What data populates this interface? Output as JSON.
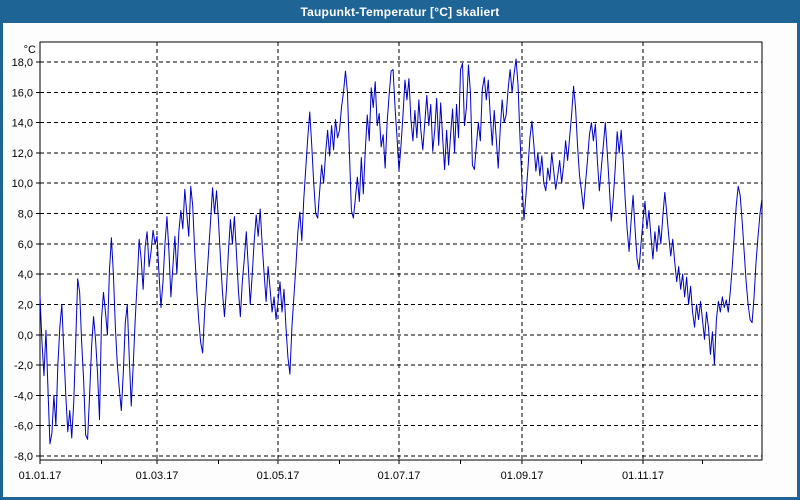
{
  "window": {
    "title": "Taupunkt-Temperatur [°C] skaliert"
  },
  "colors": {
    "titlebar_bg": "#1e6596",
    "titlebar_text": "#ffffff",
    "window_border": "#1e6596",
    "content_bg": "#fcfdfc",
    "plot_bg": "#ffffff",
    "axis": "#000000",
    "grid": "#000000",
    "line": "#0000c8"
  },
  "chart_data": {
    "type": "line",
    "title": "Taupunkt-Temperatur [°C] skaliert",
    "unit_label": "°C",
    "ylim": [
      -8,
      18
    ],
    "xlabel": "",
    "ylabel": "°C",
    "grid": "dashed",
    "legend": "none",
    "x_range_days": [
      1,
      365
    ],
    "y_ticks": [
      {
        "v": 18,
        "label": "18,0"
      },
      {
        "v": 16,
        "label": "16,0"
      },
      {
        "v": 14,
        "label": "14,0"
      },
      {
        "v": 12,
        "label": "12,0"
      },
      {
        "v": 10,
        "label": "10,0"
      },
      {
        "v": 8,
        "label": "8,0"
      },
      {
        "v": 6,
        "label": "6,0"
      },
      {
        "v": 4,
        "label": "4,0"
      },
      {
        "v": 2,
        "label": "2,0"
      },
      {
        "v": 0,
        "label": "0,0"
      },
      {
        "v": -2,
        "label": "-2,0"
      },
      {
        "v": -4,
        "label": "-4,0"
      },
      {
        "v": -6,
        "label": "-6,0"
      },
      {
        "v": -8,
        "label": "-8,0"
      }
    ],
    "x_ticks": [
      {
        "day": 1,
        "label": "01.01.17"
      },
      {
        "day": 60,
        "label": "01.03.17"
      },
      {
        "day": 121,
        "label": "01.05.17"
      },
      {
        "day": 182,
        "label": "01.07.17"
      },
      {
        "day": 244,
        "label": "01.09.17"
      },
      {
        "day": 305,
        "label": "01.11.17"
      }
    ],
    "month_tick_days": [
      1,
      32,
      60,
      91,
      121,
      152,
      182,
      213,
      244,
      274,
      305,
      335
    ],
    "series": [
      {
        "name": "Taupunkt-Temperatur",
        "color": "#0000c8",
        "start_day": 1,
        "values": [
          2.6,
          -0.5,
          -2.7,
          0.3,
          -3.5,
          -7.2,
          -6.5,
          -4.0,
          -6.0,
          -2.0,
          0.5,
          2.0,
          -1.0,
          -4.0,
          -6.4,
          -5.0,
          -6.8,
          -4.5,
          -0.5,
          3.7,
          2.8,
          -0.5,
          -3.0,
          -6.6,
          -6.9,
          -4.0,
          -0.8,
          1.2,
          -0.3,
          -2.5,
          -5.6,
          1.0,
          2.8,
          1.5,
          0.0,
          4.2,
          6.4,
          4.0,
          0.5,
          -2.0,
          -3.6,
          -5.0,
          -2.5,
          0.8,
          2.0,
          -1.5,
          -4.7,
          -2.0,
          1.0,
          3.5,
          6.3,
          5.0,
          3.0,
          5.8,
          6.8,
          4.5,
          5.5,
          6.9,
          6.0,
          6.5,
          4.0,
          1.8,
          3.5,
          6.0,
          7.8,
          5.5,
          2.5,
          4.5,
          6.5,
          4.0,
          6.8,
          8.2,
          7.0,
          9.6,
          8.0,
          6.5,
          9.8,
          8.5,
          5.5,
          3.0,
          1.0,
          -0.5,
          -1.2,
          1.5,
          3.5,
          5.5,
          7.5,
          9.7,
          8.0,
          9.5,
          7.5,
          5.0,
          2.8,
          1.2,
          3.0,
          5.5,
          7.6,
          6.0,
          7.8,
          5.5,
          3.0,
          1.2,
          3.5,
          5.0,
          6.8,
          4.5,
          2.0,
          4.0,
          6.2,
          7.9,
          6.5,
          8.3,
          6.0,
          4.0,
          2.2,
          4.5,
          3.0,
          1.5,
          2.5,
          1.0,
          2.2,
          3.5,
          1.5,
          3.0,
          0.5,
          -1.5,
          -2.6,
          0.5,
          2.5,
          4.5,
          6.8,
          8.1,
          6.2,
          9.0,
          11.0,
          13.0,
          14.7,
          12.5,
          10.0,
          8.0,
          7.7,
          9.5,
          11.2,
          10.0,
          12.0,
          13.5,
          11.8,
          13.8,
          12.2,
          14.2,
          13.0,
          13.5,
          15.0,
          16.0,
          17.4,
          16.0,
          12.0,
          8.2,
          7.7,
          9.0,
          10.4,
          8.8,
          11.7,
          9.3,
          12.2,
          14.5,
          12.8,
          16.3,
          15.0,
          16.7,
          13.8,
          14.6,
          12.4,
          13.2,
          11.0,
          14.0,
          15.8,
          17.4,
          17.5,
          15.0,
          13.0,
          10.8,
          12.5,
          14.5,
          16.8,
          15.5,
          16.9,
          14.2,
          12.8,
          14.8,
          13.0,
          15.5,
          13.5,
          12.2,
          14.0,
          15.8,
          13.8,
          15.2,
          12.1,
          13.5,
          15.6,
          12.5,
          15.3,
          13.0,
          10.9,
          13.5,
          11.2,
          13.2,
          14.9,
          12.0,
          15.2,
          13.0,
          17.5,
          17.9,
          13.8,
          15.0,
          17.8,
          16.0,
          11.2,
          10.9,
          12.5,
          14.0,
          12.8,
          16.2,
          17.0,
          15.5,
          16.8,
          14.5,
          12.5,
          14.8,
          13.0,
          11.0,
          13.5,
          15.5,
          14.0,
          14.5,
          16.2,
          17.5,
          16.0,
          17.2,
          18.2,
          16.5,
          13.0,
          10.0,
          7.6,
          9.2,
          11.0,
          13.0,
          14.1,
          12.5,
          10.8,
          12.0,
          10.5,
          11.8,
          10.0,
          9.5,
          11.0,
          10.2,
          12.0,
          10.8,
          9.6,
          10.5,
          11.5,
          10.0,
          11.2,
          12.8,
          11.5,
          13.0,
          14.5,
          16.4,
          15.0,
          12.5,
          10.5,
          9.5,
          8.3,
          10.0,
          11.5,
          13.2,
          14.0,
          12.8,
          13.9,
          11.5,
          9.5,
          11.0,
          12.5,
          14.0,
          12.0,
          9.8,
          7.5,
          9.0,
          11.0,
          13.4,
          12.0,
          13.5,
          11.5,
          9.0,
          7.0,
          5.5,
          7.5,
          9.2,
          7.0,
          5.0,
          4.3,
          6.0,
          7.5,
          8.8,
          7.0,
          8.2,
          6.5,
          5.0,
          6.8,
          5.5,
          7.2,
          6.0,
          7.8,
          9.4,
          8.0,
          6.5,
          5.2,
          6.3,
          4.8,
          3.5,
          4.5,
          3.0,
          4.0,
          2.5,
          3.8,
          2.0,
          3.2,
          1.5,
          0.5,
          2.0,
          1.0,
          2.2,
          1.0,
          -0.3,
          1.5,
          0.5,
          -1.3,
          0.2,
          -2.0,
          1.0,
          2.2,
          1.5,
          2.5,
          1.8,
          2.3,
          1.5,
          2.8,
          4.5,
          6.5,
          8.5,
          9.8,
          9.2,
          7.5,
          5.5,
          3.5,
          2.0,
          1.0,
          0.8,
          2.5,
          4.8,
          6.5,
          8.0,
          9.0
        ]
      }
    ]
  }
}
